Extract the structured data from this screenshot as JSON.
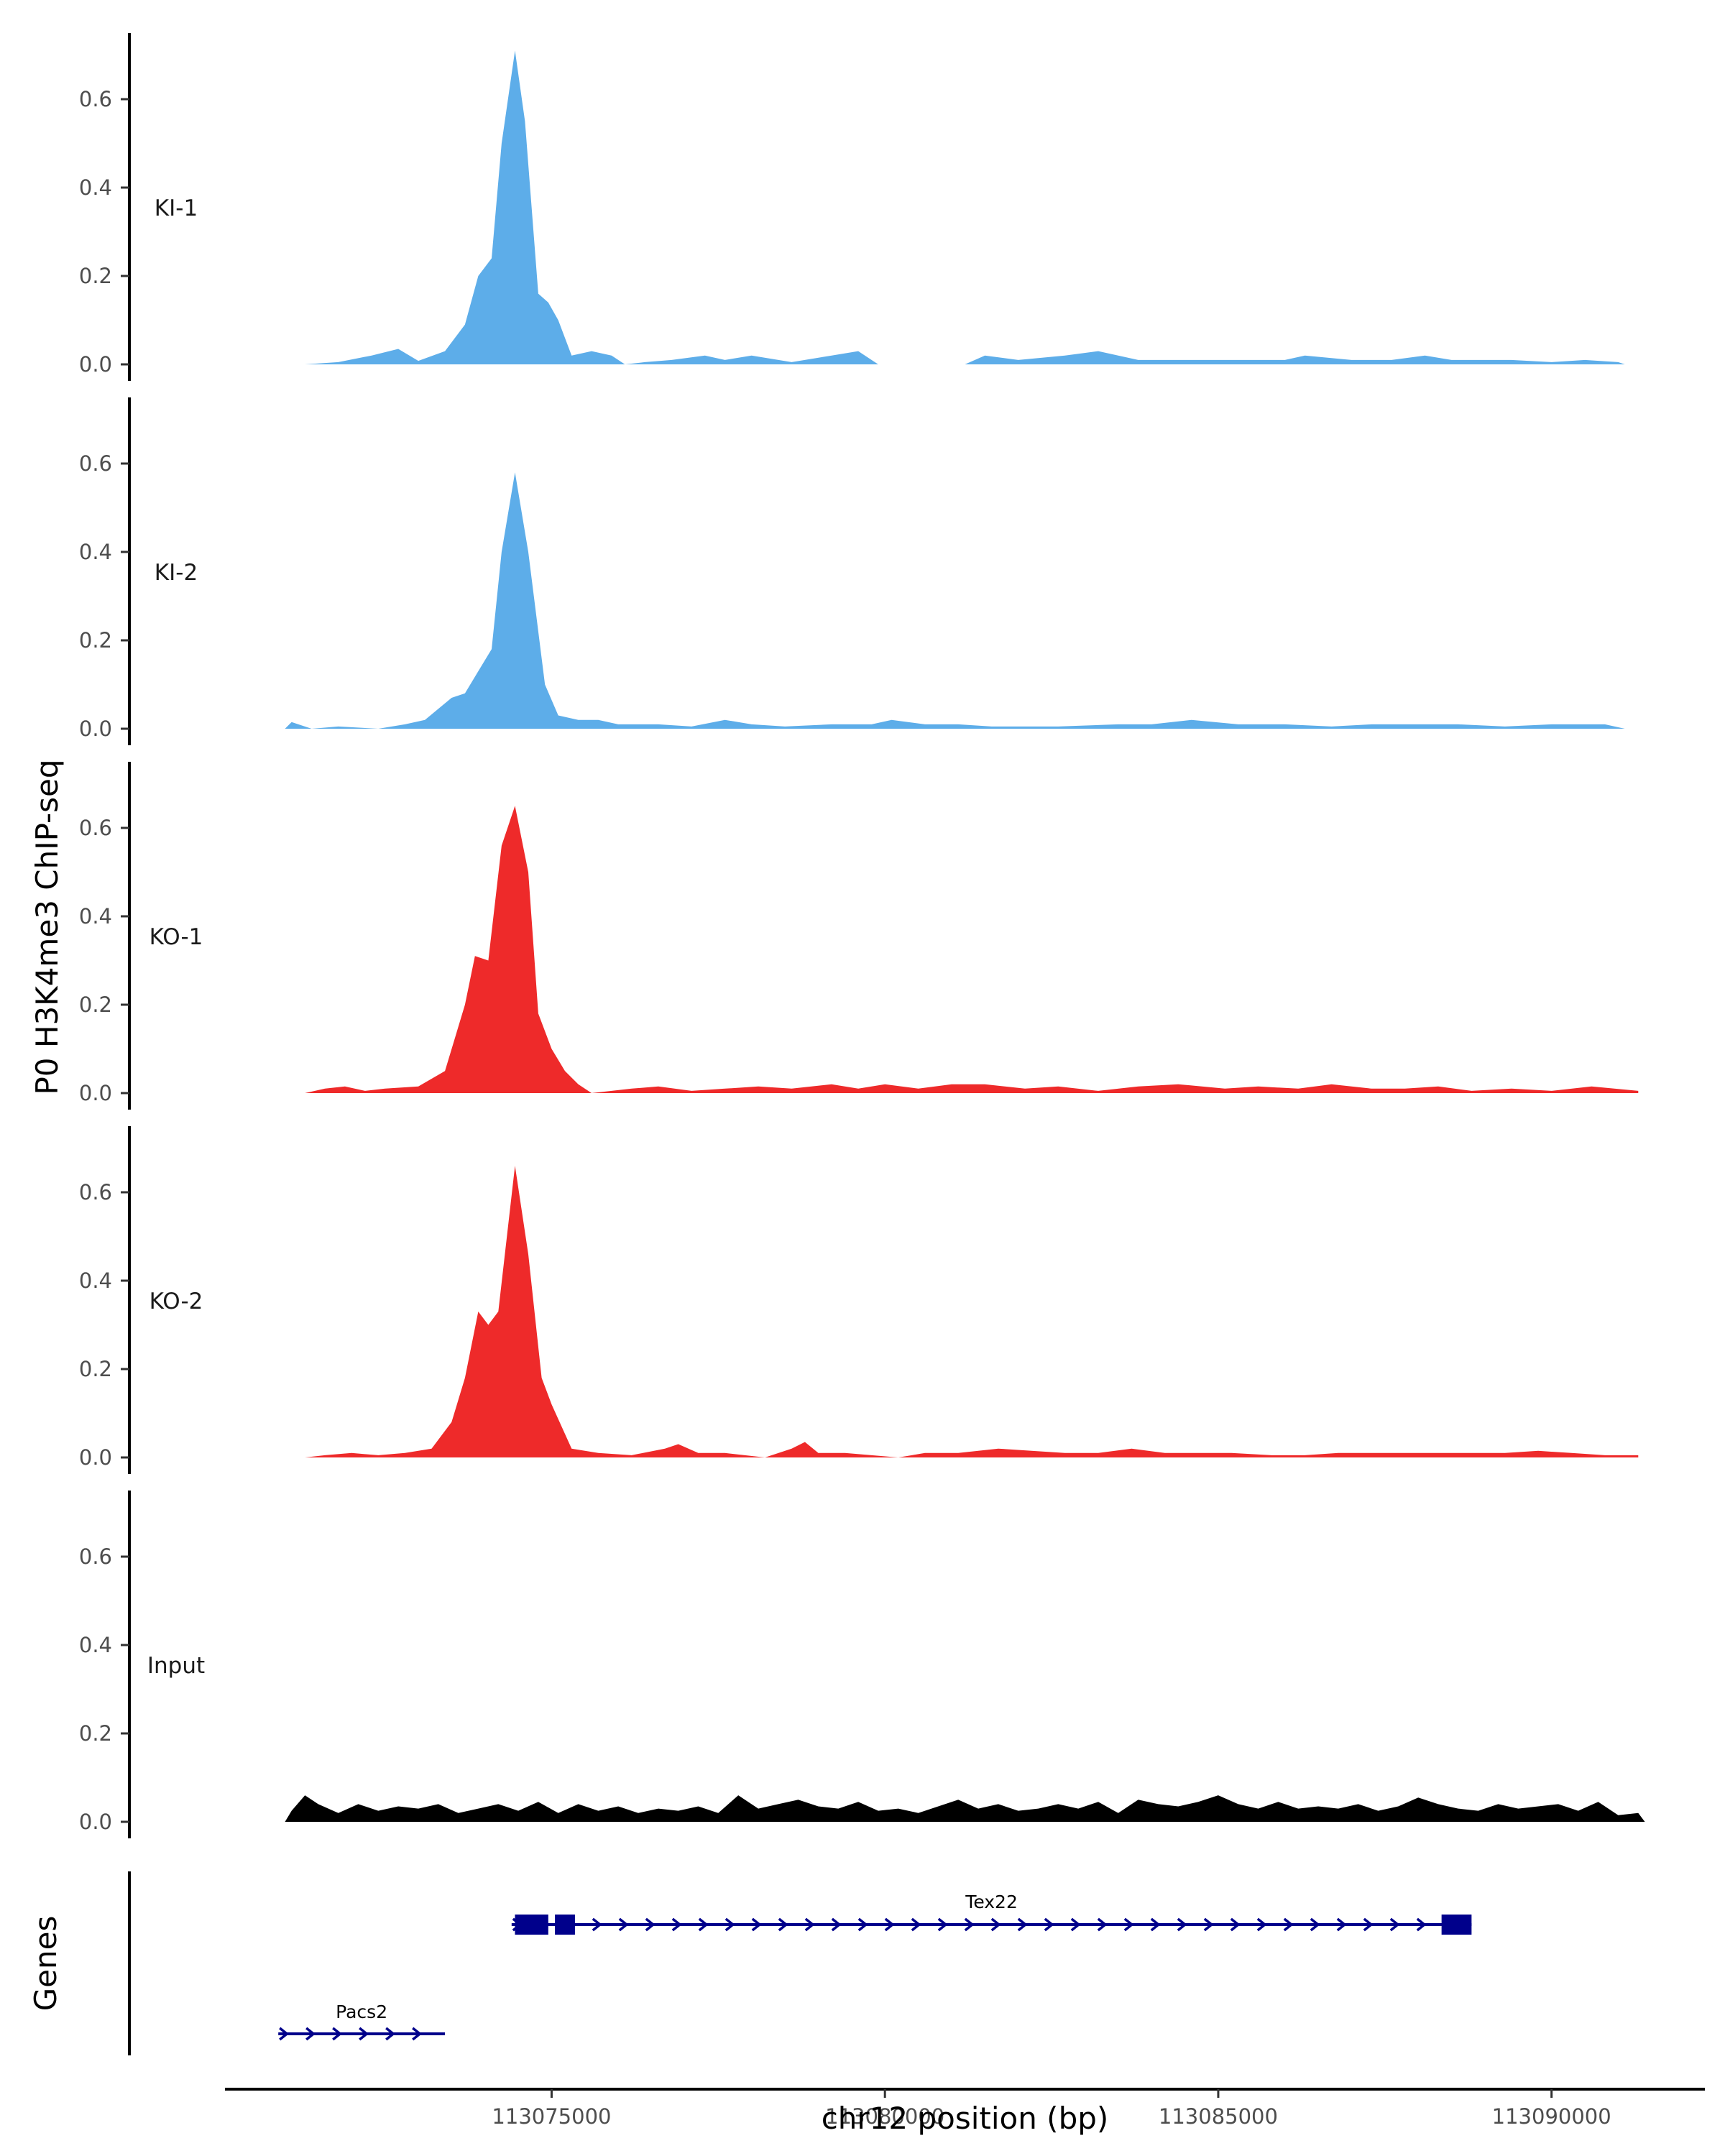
{
  "chart_data": {
    "type": "area",
    "ylabel": "P0 H3K4me3 ChIP-seq",
    "xlabel": "chr12 position (bp)",
    "xlim": [
      113070100,
      113092300
    ],
    "x_ticks": [
      113075000,
      113080000,
      113085000,
      113090000
    ],
    "x_tick_labels": [
      "113075000",
      "113080000",
      "113085000",
      "113090000"
    ],
    "ylim": [
      0,
      0.72
    ],
    "y_ticks": [
      0,
      0.2,
      0.4,
      0.6
    ],
    "y_tick_labels": [
      "0.0",
      "0.2",
      "0.4",
      "0.6"
    ],
    "series": [
      {
        "name": "KI-1",
        "color": "#5dade9",
        "points": [
          [
            113071300,
            0
          ],
          [
            113071800,
            0.005
          ],
          [
            113072300,
            0.02
          ],
          [
            113072700,
            0.035
          ],
          [
            113073000,
            0.008
          ],
          [
            113073400,
            0.03
          ],
          [
            113073700,
            0.09
          ],
          [
            113073900,
            0.2
          ],
          [
            113074100,
            0.24
          ],
          [
            113074250,
            0.5
          ],
          [
            113074450,
            0.71
          ],
          [
            113074600,
            0.55
          ],
          [
            113074800,
            0.16
          ],
          [
            113074950,
            0.14
          ],
          [
            113075100,
            0.1
          ],
          [
            113075300,
            0.02
          ],
          [
            113075600,
            0.03
          ],
          [
            113075900,
            0.02
          ],
          [
            113076100,
            0
          ],
          [
            113076400,
            0.005
          ],
          [
            113076800,
            0.01
          ],
          [
            113077300,
            0.02
          ],
          [
            113077600,
            0.01
          ],
          [
            113078000,
            0.02
          ],
          [
            113078600,
            0.005
          ],
          [
            113079200,
            0.02
          ],
          [
            113079600,
            0.03
          ],
          [
            113079900,
            0
          ],
          [
            113081200,
            0
          ],
          [
            113081500,
            0.02
          ],
          [
            113082000,
            0.01
          ],
          [
            113082700,
            0.02
          ],
          [
            113083200,
            0.03
          ],
          [
            113083800,
            0.01
          ],
          [
            113084300,
            0.01
          ],
          [
            113084800,
            0.01
          ],
          [
            113085500,
            0.01
          ],
          [
            113086000,
            0.01
          ],
          [
            113086300,
            0.02
          ],
          [
            113087000,
            0.01
          ],
          [
            113087600,
            0.01
          ],
          [
            113088100,
            0.02
          ],
          [
            113088500,
            0.01
          ],
          [
            113089000,
            0.01
          ],
          [
            113089400,
            0.01
          ],
          [
            113090000,
            0.005
          ],
          [
            113090500,
            0.01
          ],
          [
            113091000,
            0.005
          ],
          [
            113091100,
            0
          ]
        ]
      },
      {
        "name": "KI-2",
        "color": "#5dade9",
        "points": [
          [
            113071000,
            0
          ],
          [
            113071100,
            0.015
          ],
          [
            113071400,
            0
          ],
          [
            113071800,
            0.005
          ],
          [
            113072400,
            0
          ],
          [
            113072800,
            0.01
          ],
          [
            113073100,
            0.02
          ],
          [
            113073500,
            0.07
          ],
          [
            113073700,
            0.08
          ],
          [
            113073900,
            0.13
          ],
          [
            113074100,
            0.18
          ],
          [
            113074250,
            0.4
          ],
          [
            113074450,
            0.58
          ],
          [
            113074650,
            0.4
          ],
          [
            113074900,
            0.1
          ],
          [
            113075100,
            0.03
          ],
          [
            113075400,
            0.02
          ],
          [
            113075700,
            0.02
          ],
          [
            113076000,
            0.01
          ],
          [
            113076600,
            0.01
          ],
          [
            113077100,
            0.005
          ],
          [
            113077600,
            0.02
          ],
          [
            113078000,
            0.01
          ],
          [
            113078500,
            0.005
          ],
          [
            113079200,
            0.01
          ],
          [
            113079800,
            0.01
          ],
          [
            113080100,
            0.02
          ],
          [
            113080600,
            0.01
          ],
          [
            113081100,
            0.01
          ],
          [
            113081600,
            0.005
          ],
          [
            113082600,
            0.005
          ],
          [
            113083500,
            0.01
          ],
          [
            113084000,
            0.01
          ],
          [
            113084600,
            0.02
          ],
          [
            113085300,
            0.01
          ],
          [
            113086000,
            0.01
          ],
          [
            113086700,
            0.005
          ],
          [
            113087300,
            0.01
          ],
          [
            113088000,
            0.01
          ],
          [
            113088600,
            0.01
          ],
          [
            113089300,
            0.005
          ],
          [
            113090000,
            0.01
          ],
          [
            113090800,
            0.01
          ],
          [
            113091100,
            0
          ]
        ]
      },
      {
        "name": "KO-1",
        "color": "#ee2a2a",
        "points": [
          [
            113071300,
            0
          ],
          [
            113071600,
            0.01
          ],
          [
            113071900,
            0.015
          ],
          [
            113072200,
            0.005
          ],
          [
            113072500,
            0.01
          ],
          [
            113073000,
            0.015
          ],
          [
            113073400,
            0.05
          ],
          [
            113073700,
            0.2
          ],
          [
            113073850,
            0.31
          ],
          [
            113074050,
            0.3
          ],
          [
            113074250,
            0.56
          ],
          [
            113074450,
            0.65
          ],
          [
            113074650,
            0.5
          ],
          [
            113074800,
            0.18
          ],
          [
            113075000,
            0.1
          ],
          [
            113075200,
            0.05
          ],
          [
            113075400,
            0.02
          ],
          [
            113075600,
            0
          ],
          [
            113076200,
            0.01
          ],
          [
            113076600,
            0.015
          ],
          [
            113077100,
            0.005
          ],
          [
            113077600,
            0.01
          ],
          [
            113078100,
            0.015
          ],
          [
            113078600,
            0.01
          ],
          [
            113079200,
            0.02
          ],
          [
            113079600,
            0.01
          ],
          [
            113080000,
            0.02
          ],
          [
            113080500,
            0.01
          ],
          [
            113081000,
            0.02
          ],
          [
            113081500,
            0.02
          ],
          [
            113082100,
            0.01
          ],
          [
            113082600,
            0.015
          ],
          [
            113083200,
            0.005
          ],
          [
            113083800,
            0.015
          ],
          [
            113084400,
            0.02
          ],
          [
            113085100,
            0.01
          ],
          [
            113085600,
            0.015
          ],
          [
            113086200,
            0.01
          ],
          [
            113086700,
            0.02
          ],
          [
            113087300,
            0.01
          ],
          [
            113087800,
            0.01
          ],
          [
            113088300,
            0.015
          ],
          [
            113088800,
            0.005
          ],
          [
            113089400,
            0.01
          ],
          [
            113090000,
            0.005
          ],
          [
            113090600,
            0.015
          ],
          [
            113091300,
            0.005
          ]
        ]
      },
      {
        "name": "KO-2",
        "color": "#ee2a2a",
        "points": [
          [
            113071300,
            0
          ],
          [
            113071600,
            0.005
          ],
          [
            113072000,
            0.01
          ],
          [
            113072400,
            0.005
          ],
          [
            113072800,
            0.01
          ],
          [
            113073200,
            0.02
          ],
          [
            113073500,
            0.08
          ],
          [
            113073700,
            0.18
          ],
          [
            113073900,
            0.33
          ],
          [
            113074050,
            0.3
          ],
          [
            113074200,
            0.33
          ],
          [
            113074450,
            0.66
          ],
          [
            113074650,
            0.46
          ],
          [
            113074850,
            0.18
          ],
          [
            113075000,
            0.12
          ],
          [
            113075300,
            0.02
          ],
          [
            113075700,
            0.01
          ],
          [
            113076200,
            0.005
          ],
          [
            113076700,
            0.02
          ],
          [
            113076900,
            0.03
          ],
          [
            113077200,
            0.01
          ],
          [
            113077600,
            0.01
          ],
          [
            113078200,
            0
          ],
          [
            113078600,
            0.02
          ],
          [
            113078800,
            0.035
          ],
          [
            113079000,
            0.01
          ],
          [
            113079400,
            0.01
          ],
          [
            113079800,
            0.005
          ],
          [
            113080200,
            0
          ],
          [
            113080600,
            0.01
          ],
          [
            113081100,
            0.01
          ],
          [
            113081700,
            0.02
          ],
          [
            113082200,
            0.015
          ],
          [
            113082700,
            0.01
          ],
          [
            113083200,
            0.01
          ],
          [
            113083700,
            0.02
          ],
          [
            113084200,
            0.01
          ],
          [
            113084800,
            0.01
          ],
          [
            113085200,
            0.01
          ],
          [
            113085800,
            0.005
          ],
          [
            113086300,
            0.005
          ],
          [
            113086800,
            0.01
          ],
          [
            113087300,
            0.01
          ],
          [
            113087800,
            0.01
          ],
          [
            113088300,
            0.01
          ],
          [
            113088800,
            0.01
          ],
          [
            113089300,
            0.01
          ],
          [
            113089800,
            0.015
          ],
          [
            113090300,
            0.01
          ],
          [
            113090800,
            0.005
          ],
          [
            113091300,
            0.005
          ]
        ]
      },
      {
        "name": "Input",
        "color": "#000000",
        "points": [
          [
            113071000,
            0
          ],
          [
            113071100,
            0.025
          ],
          [
            113071300,
            0.06
          ],
          [
            113071500,
            0.04
          ],
          [
            113071800,
            0.02
          ],
          [
            113072100,
            0.04
          ],
          [
            113072400,
            0.025
          ],
          [
            113072700,
            0.035
          ],
          [
            113073000,
            0.03
          ],
          [
            113073300,
            0.04
          ],
          [
            113073600,
            0.02
          ],
          [
            113073900,
            0.03
          ],
          [
            113074200,
            0.04
          ],
          [
            113074500,
            0.025
          ],
          [
            113074800,
            0.045
          ],
          [
            113075100,
            0.02
          ],
          [
            113075400,
            0.04
          ],
          [
            113075700,
            0.025
          ],
          [
            113076000,
            0.035
          ],
          [
            113076300,
            0.02
          ],
          [
            113076600,
            0.03
          ],
          [
            113076900,
            0.025
          ],
          [
            113077200,
            0.035
          ],
          [
            113077500,
            0.02
          ],
          [
            113077800,
            0.06
          ],
          [
            113078100,
            0.03
          ],
          [
            113078400,
            0.04
          ],
          [
            113078700,
            0.05
          ],
          [
            113079000,
            0.035
          ],
          [
            113079300,
            0.03
          ],
          [
            113079600,
            0.045
          ],
          [
            113079900,
            0.025
          ],
          [
            113080200,
            0.03
          ],
          [
            113080500,
            0.02
          ],
          [
            113080800,
            0.035
          ],
          [
            113081100,
            0.05
          ],
          [
            113081400,
            0.03
          ],
          [
            113081700,
            0.04
          ],
          [
            113082000,
            0.025
          ],
          [
            113082300,
            0.03
          ],
          [
            113082600,
            0.04
          ],
          [
            113082900,
            0.03
          ],
          [
            113083200,
            0.045
          ],
          [
            113083500,
            0.02
          ],
          [
            113083800,
            0.05
          ],
          [
            113084100,
            0.04
          ],
          [
            113084400,
            0.035
          ],
          [
            113084700,
            0.045
          ],
          [
            113085000,
            0.06
          ],
          [
            113085300,
            0.04
          ],
          [
            113085600,
            0.03
          ],
          [
            113085900,
            0.045
          ],
          [
            113086200,
            0.03
          ],
          [
            113086500,
            0.035
          ],
          [
            113086800,
            0.03
          ],
          [
            113087100,
            0.04
          ],
          [
            113087400,
            0.025
          ],
          [
            113087700,
            0.035
          ],
          [
            113088000,
            0.055
          ],
          [
            113088300,
            0.04
          ],
          [
            113088600,
            0.03
          ],
          [
            113088900,
            0.025
          ],
          [
            113089200,
            0.04
          ],
          [
            113089500,
            0.03
          ],
          [
            113089800,
            0.035
          ],
          [
            113090100,
            0.04
          ],
          [
            113090400,
            0.025
          ],
          [
            113090700,
            0.045
          ],
          [
            113091000,
            0.015
          ],
          [
            113091300,
            0.02
          ],
          [
            113091400,
            0
          ]
        ]
      }
    ],
    "genes_track": {
      "label": "Genes",
      "color": "#00008b",
      "genes": [
        {
          "name": "Tex22",
          "start": 113074400,
          "end": 113088800,
          "strand": "+",
          "exons": [
            [
              113074450,
              113074950
            ],
            [
              113075050,
              113075350
            ],
            [
              113088350,
              113088800
            ]
          ]
        },
        {
          "name": "Pacs2",
          "start": 113070900,
          "end": 113073400,
          "strand": "+",
          "exons": []
        }
      ]
    }
  }
}
